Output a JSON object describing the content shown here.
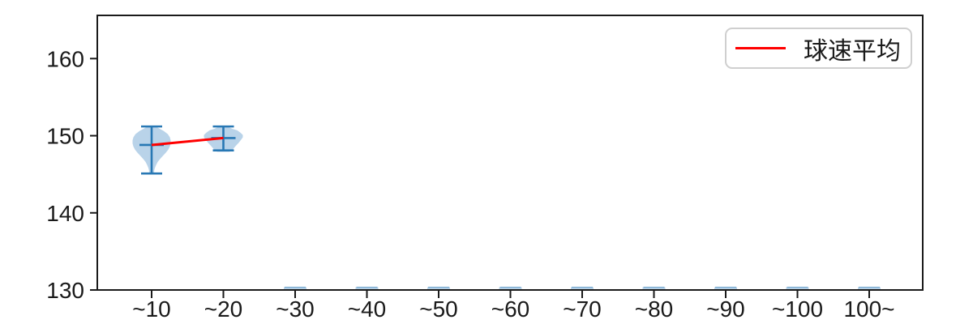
{
  "chart_data": {
    "type": "violin",
    "title": "",
    "xlabel": "",
    "ylabel": "",
    "categories": [
      "~10",
      "~20",
      "~30",
      "~40",
      "~50",
      "~60",
      "~70",
      "~80",
      "~90",
      "~100",
      "100~"
    ],
    "yticks": [
      130,
      140,
      150,
      160
    ],
    "ylim": [
      130,
      165.6
    ],
    "grid": false,
    "legend": {
      "label": "球速平均",
      "position": "upper right"
    },
    "violins": [
      {
        "category": "~10",
        "min": 145.1,
        "max": 151.2,
        "mean": 148.8,
        "profile": [
          [
            151.2,
            5
          ],
          [
            150.9,
            10
          ],
          [
            150.6,
            15
          ],
          [
            150.2,
            20
          ],
          [
            149.8,
            22.5
          ],
          [
            149.4,
            23.5
          ],
          [
            149.0,
            23.5
          ],
          [
            148.6,
            22.5
          ],
          [
            148.2,
            20.5
          ],
          [
            147.8,
            17.5
          ],
          [
            147.4,
            14
          ],
          [
            147.0,
            10.5
          ],
          [
            146.6,
            7.5
          ],
          [
            146.2,
            5.5
          ],
          [
            145.8,
            4
          ],
          [
            145.5,
            3.2
          ],
          [
            145.2,
            3
          ]
        ]
      },
      {
        "category": "~20",
        "min": 148.1,
        "max": 151.2,
        "mean": 149.7,
        "profile": [
          [
            151.2,
            5
          ],
          [
            150.9,
            11
          ],
          [
            150.7,
            17
          ],
          [
            150.4,
            21
          ],
          [
            150.1,
            24
          ],
          [
            149.8,
            24
          ],
          [
            149.5,
            22
          ],
          [
            149.1,
            19
          ],
          [
            148.7,
            15.5
          ],
          [
            148.4,
            13
          ],
          [
            148.2,
            11.5
          ],
          [
            148.0,
            10
          ],
          [
            147.9,
            7
          ]
        ]
      }
    ],
    "baseline_categories": [
      "~30",
      "~40",
      "~50",
      "~60",
      "~70",
      "~80",
      "~90",
      "~100",
      "100~"
    ],
    "baseline_value": 130,
    "mean_series": [
      {
        "category": "~10",
        "value": 148.8
      },
      {
        "category": "~20",
        "value": 149.7
      }
    ],
    "colors": {
      "violin_fill": "#b9d3e9",
      "violin_line": "#2878b4",
      "mean_line": "#ff0000",
      "axis": "#1a1a1a",
      "legend_border": "#cfcfcf"
    }
  }
}
